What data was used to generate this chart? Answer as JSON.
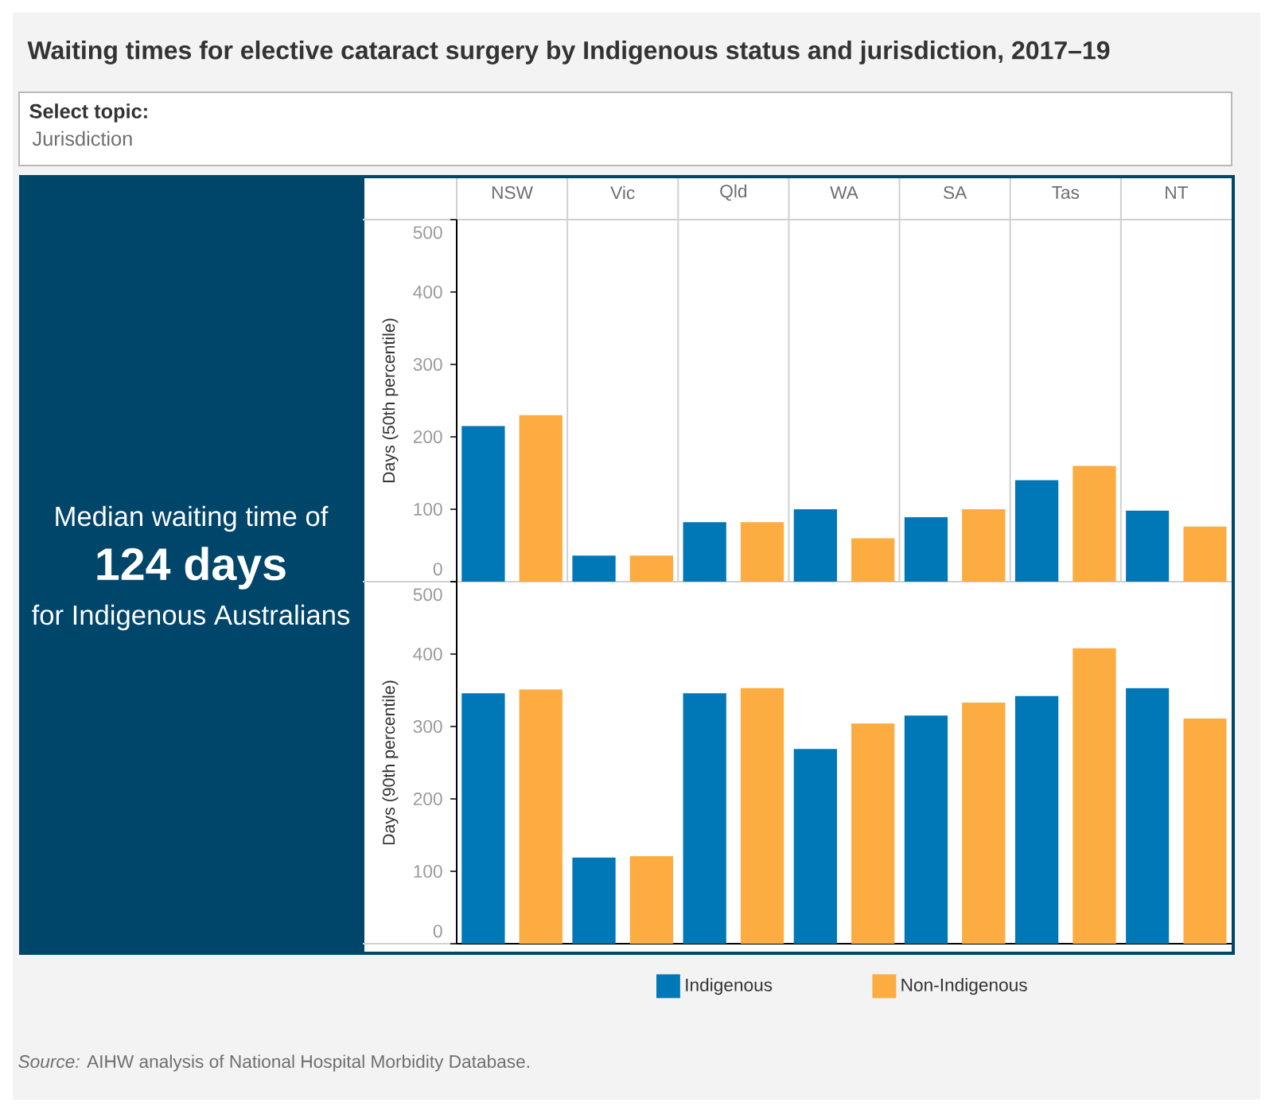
{
  "chart_data": [
    {
      "type": "other",
      "title": "Waiting times for elective cataract surgery by Indigenous status and jurisdiction, 2017–19",
      "annotations": [
        "Select topic:",
        "Jurisdiction",
        "Median waiting time of",
        "124 days",
        "for Indigenous Australians"
      ]
    },
    {
      "type": "bar",
      "ylabel": "Days (50th percentile)",
      "categories": [
        "NSW",
        "Vic",
        "Qld",
        "WA",
        "SA",
        "Tas",
        "NT"
      ],
      "series": [
        {
          "color": "#0077b6",
          "values": [
            215,
            36,
            82,
            100,
            89,
            140,
            98
          ]
        },
        {
          "color": "#fcac40",
          "values": [
            230,
            36,
            82,
            60,
            100,
            160,
            76
          ]
        }
      ],
      "ylim": [
        0,
        500
      ],
      "yticks": [
        0,
        100,
        200,
        300,
        400,
        500
      ],
      "grid": "x"
    },
    {
      "type": "bar",
      "ylabel": "Days (90th percentile)",
      "categories": [
        null,
        null,
        null,
        null,
        null,
        null,
        null
      ],
      "tick_labels": "y",
      "series": [
        {
          "name": "Indigenous",
          "color": "#0077b6",
          "values": [
            346,
            119,
            346,
            269,
            315,
            342,
            353
          ]
        },
        {
          "name": "Non-Indigenous",
          "color": "#fcac40",
          "values": [
            351,
            121,
            353,
            304,
            333,
            408,
            311
          ]
        }
      ],
      "ylim": [
        0,
        500
      ],
      "yticks": [
        0,
        100,
        200,
        300,
        400,
        500
      ],
      "grid": "x",
      "legend": "bottom",
      "annotations": [
        "*Source:* AIHW analysis of National Hospital Morbidity Database."
      ]
    }
  ]
}
